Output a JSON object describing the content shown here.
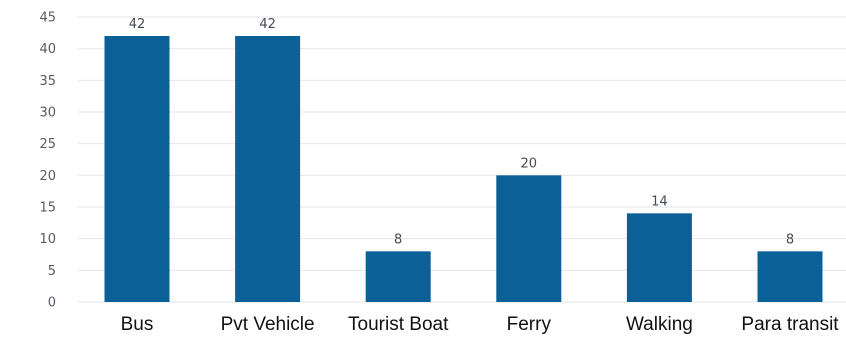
{
  "chart_data": {
    "type": "bar",
    "title": "",
    "xlabel": "",
    "ylabel": "",
    "categories": [
      "Bus",
      "Pvt Vehicle",
      "Tourist Boat",
      "Ferry",
      "Walking",
      "Para transit"
    ],
    "values": [
      42,
      42,
      8,
      20,
      14,
      8
    ],
    "data_labels": [
      "42",
      "42",
      "8",
      "20",
      "14",
      "8"
    ],
    "ylim": [
      0,
      45
    ],
    "yticks": [
      0,
      5,
      10,
      15,
      20,
      25,
      30,
      35,
      40,
      45
    ],
    "grid": true,
    "legend": "none",
    "colors": {
      "bar": "#0b6197",
      "grid": "#e6e6e6"
    }
  }
}
